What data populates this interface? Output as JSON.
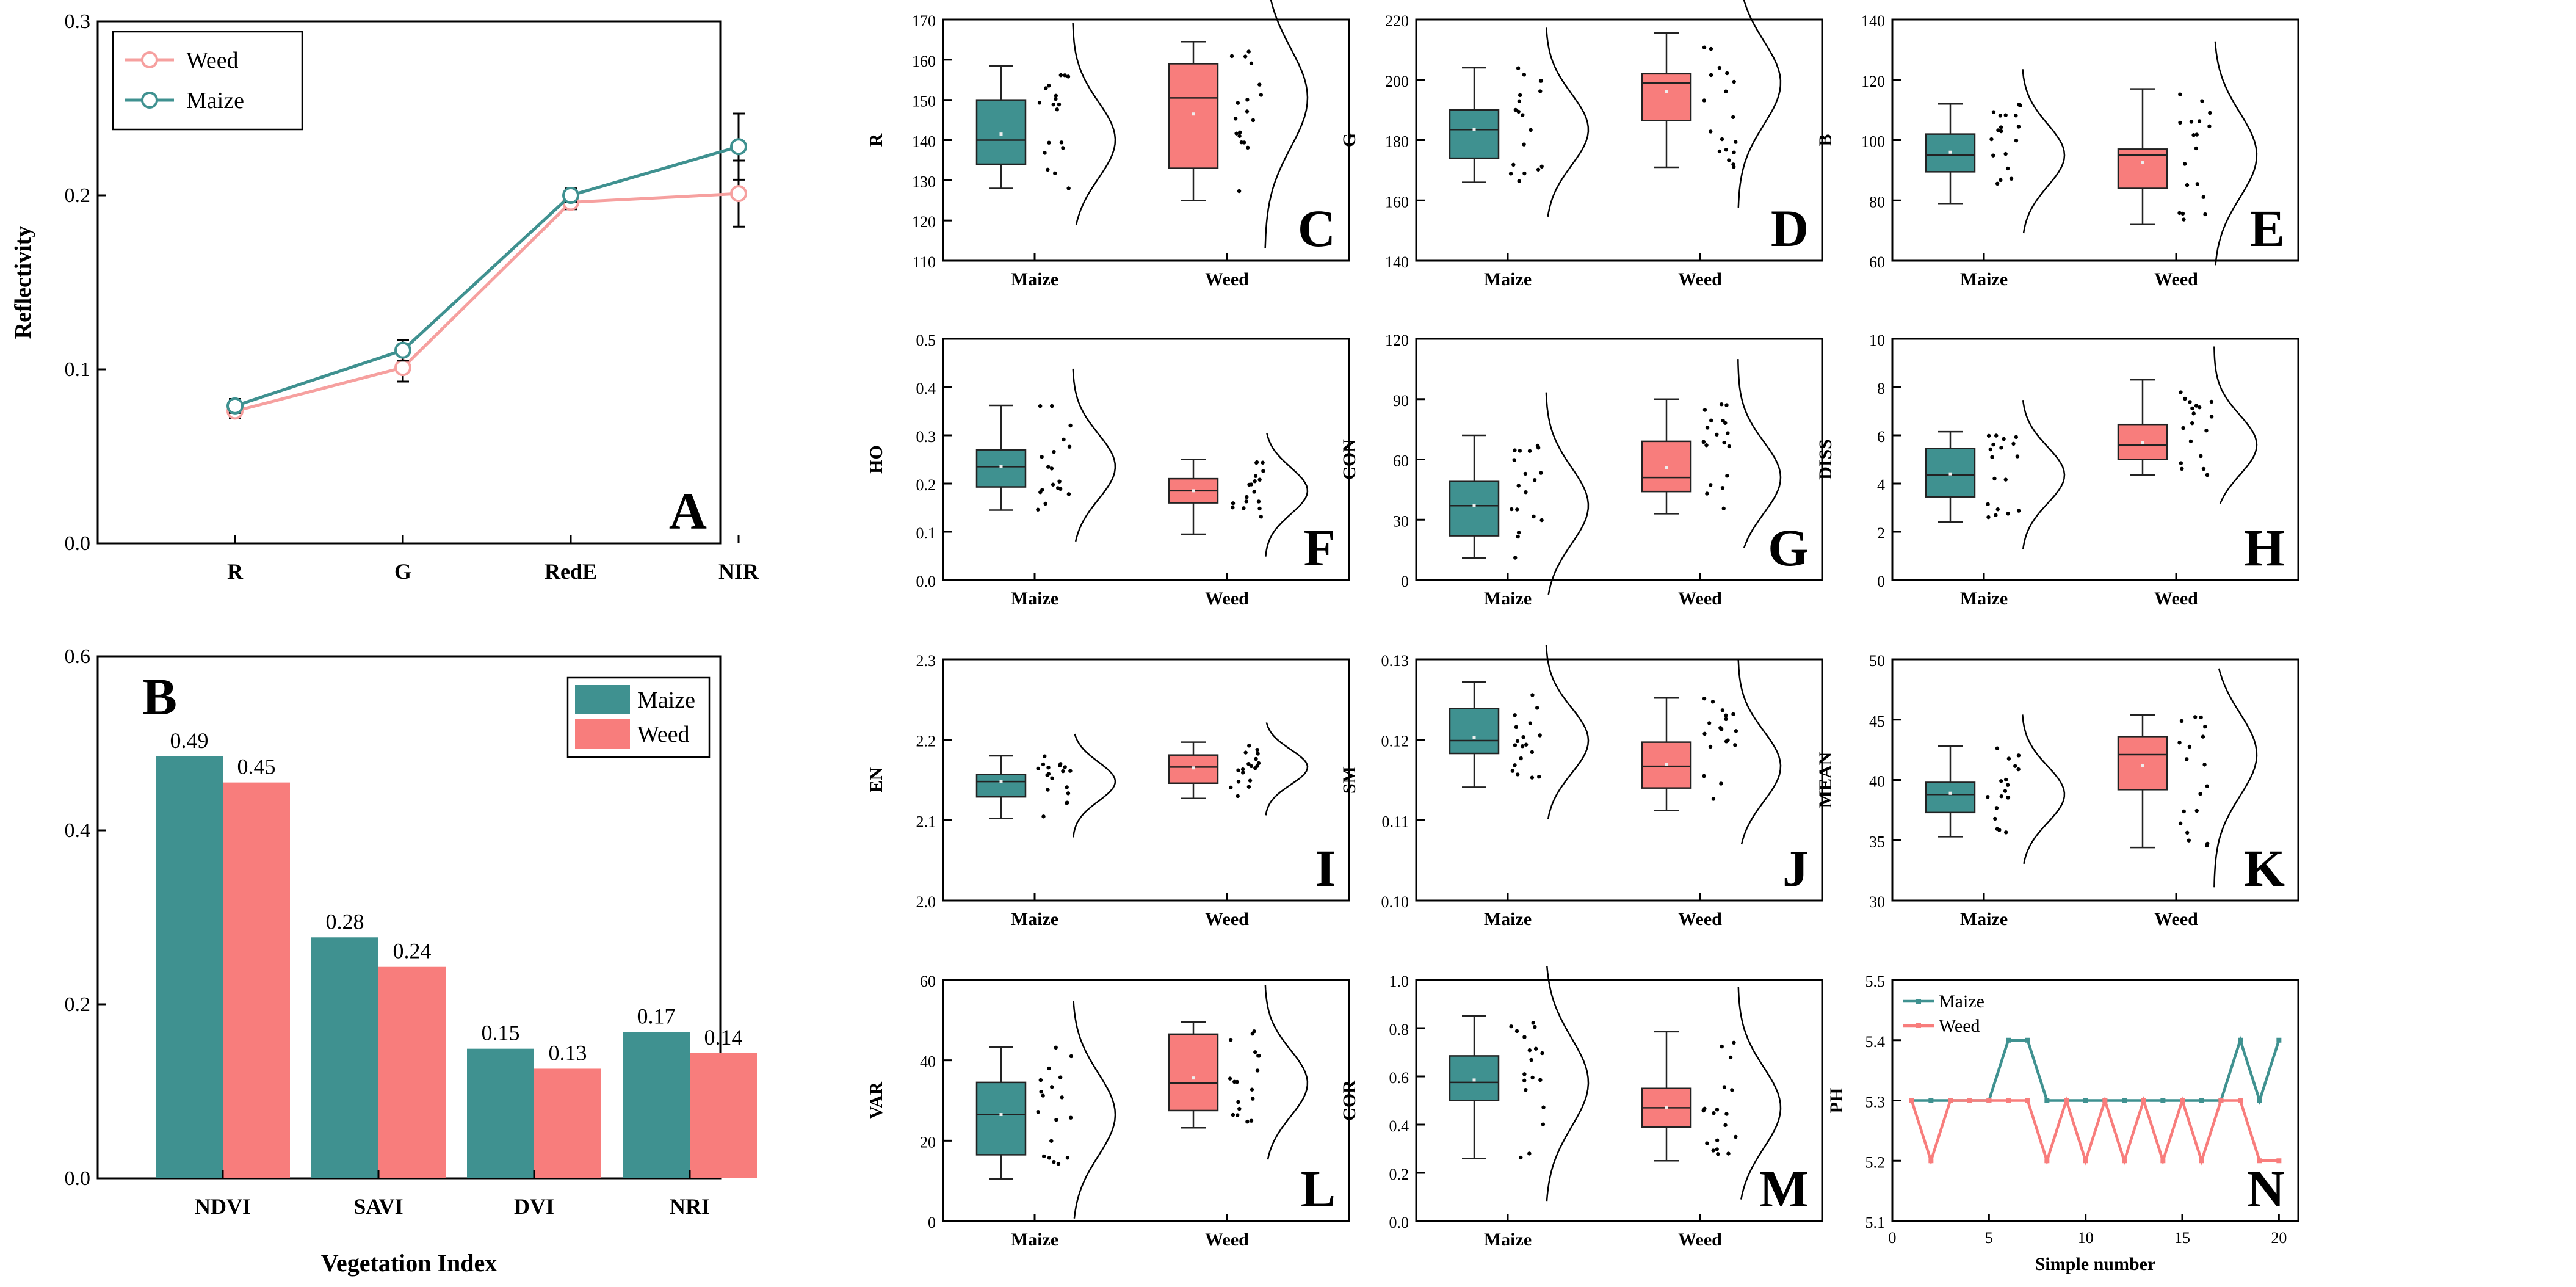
{
  "colors": {
    "maize": "#3f9190",
    "weed": "#f87d7c",
    "weed_line": "#f6a09f"
  },
  "panels": {
    "A": {
      "letter": "A",
      "type": "line",
      "categories": [
        "R",
        "G",
        "RedE",
        "NIR"
      ],
      "ylabel": "Reflectivity",
      "ylim": [
        0,
        0.3
      ],
      "yticks": [
        "0.0",
        "0.1",
        "0.2",
        "0.3"
      ],
      "legend": [
        "Weed",
        "Maize"
      ],
      "series": [
        {
          "name": "Weed",
          "values": [
            0.076,
            0.101,
            0.196,
            0.201
          ],
          "errors": [
            0.004,
            0.008,
            0.004,
            0.019
          ]
        },
        {
          "name": "Maize",
          "values": [
            0.079,
            0.111,
            0.2,
            0.228
          ],
          "errors": [
            0.004,
            0.006,
            0.004,
            0.019
          ]
        }
      ]
    },
    "B": {
      "letter": "B",
      "type": "bar",
      "categories": [
        "NDVI",
        "SAVI",
        "DVI",
        "NRI"
      ],
      "xlabel": "Vegetation Index",
      "ylim": [
        0,
        0.6
      ],
      "yticks": [
        "0.0",
        "0.2",
        "0.4",
        "0.6"
      ],
      "legend": [
        "Maize",
        "Weed"
      ],
      "series": [
        {
          "name": "Maize",
          "values": [
            0.485,
            0.277,
            0.149,
            0.168
          ],
          "labels": [
            "0.49",
            "0.28",
            "0.15",
            "0.17"
          ]
        },
        {
          "name": "Weed",
          "values": [
            0.455,
            0.243,
            0.126,
            0.144
          ],
          "labels": [
            "0.45",
            "0.24",
            "0.13",
            "0.14"
          ]
        }
      ]
    },
    "C": {
      "letter": "C",
      "ylabel": "R",
      "ylim": [
        110,
        170
      ],
      "yticks": [
        "110",
        "120",
        "130",
        "140",
        "150",
        "160",
        "170"
      ],
      "groups": [
        "Maize",
        "Weed"
      ],
      "boxes": [
        {
          "min": 128,
          "q1": 134,
          "median": 140,
          "q3": 150,
          "max": 158.5,
          "mean": 141.5
        },
        {
          "min": 125,
          "q1": 133,
          "median": 150.5,
          "q3": 159,
          "max": 164.5,
          "mean": 146.5
        }
      ]
    },
    "D": {
      "letter": "D",
      "ylabel": "G",
      "ylim": [
        140,
        220
      ],
      "yticks": [
        "140",
        "160",
        "180",
        "200",
        "220"
      ],
      "groups": [
        "Maize",
        "Weed"
      ],
      "boxes": [
        {
          "min": 166,
          "q1": 174,
          "median": 183.5,
          "q3": 190,
          "max": 204,
          "mean": 183.5
        },
        {
          "min": 171,
          "q1": 186.5,
          "median": 199,
          "q3": 202,
          "max": 215.5,
          "mean": 196
        }
      ]
    },
    "E": {
      "letter": "E",
      "ylabel": "B",
      "ylim": [
        60,
        140
      ],
      "yticks": [
        "60",
        "80",
        "100",
        "120",
        "140"
      ],
      "groups": [
        "Maize",
        "Weed"
      ],
      "boxes": [
        {
          "min": 79,
          "q1": 89.5,
          "median": 95,
          "q3": 102,
          "max": 112,
          "mean": 96
        },
        {
          "min": 72,
          "q1": 84,
          "median": 95,
          "q3": 97,
          "max": 117,
          "mean": 92.5
        }
      ]
    },
    "F": {
      "letter": "F",
      "ylabel": "HO",
      "ylim": [
        0,
        0.5
      ],
      "yticks": [
        "0.0",
        "0.1",
        "0.2",
        "0.3",
        "0.4",
        "0.5"
      ],
      "groups": [
        "Maize",
        "Weed"
      ],
      "boxes": [
        {
          "min": 0.145,
          "q1": 0.193,
          "median": 0.235,
          "q3": 0.27,
          "max": 0.362,
          "mean": 0.235
        },
        {
          "min": 0.095,
          "q1": 0.16,
          "median": 0.185,
          "q3": 0.21,
          "max": 0.25,
          "mean": 0.185
        }
      ]
    },
    "G": {
      "letter": "G",
      "ylabel": "CON",
      "ylim": [
        0,
        120
      ],
      "yticks": [
        "0",
        "30",
        "60",
        "90",
        "120"
      ],
      "groups": [
        "Maize",
        "Weed"
      ],
      "boxes": [
        {
          "min": 11,
          "q1": 22,
          "median": 37,
          "q3": 49,
          "max": 72,
          "mean": 37
        },
        {
          "min": 33,
          "q1": 44,
          "median": 51,
          "q3": 69,
          "max": 90,
          "mean": 56
        }
      ]
    },
    "H": {
      "letter": "H",
      "ylabel": "DISS",
      "ylim": [
        0,
        10
      ],
      "yticks": [
        "0",
        "2",
        "4",
        "6",
        "8",
        "10"
      ],
      "groups": [
        "Maize",
        "Weed"
      ],
      "boxes": [
        {
          "min": 2.4,
          "q1": 3.45,
          "median": 4.35,
          "q3": 5.45,
          "max": 6.15,
          "mean": 4.4
        },
        {
          "min": 4.35,
          "q1": 5.0,
          "median": 5.6,
          "q3": 6.45,
          "max": 8.3,
          "mean": 5.7
        }
      ]
    },
    "I": {
      "letter": "I",
      "ylabel": "EN",
      "ylim": [
        2.0,
        2.3
      ],
      "yticks": [
        "2.0",
        "2.1",
        "2.2",
        "2.3"
      ],
      "groups": [
        "Maize",
        "Weed"
      ],
      "boxes": [
        {
          "min": 2.102,
          "q1": 2.129,
          "median": 2.148,
          "q3": 2.157,
          "max": 2.18,
          "mean": 2.148
        },
        {
          "min": 2.127,
          "q1": 2.146,
          "median": 2.166,
          "q3": 2.181,
          "max": 2.197,
          "mean": 2.165
        }
      ]
    },
    "J": {
      "letter": "J",
      "ylabel": "SM",
      "ylim": [
        0.1,
        0.13
      ],
      "yticks": [
        "0.10",
        "0.11",
        "0.12",
        "0.13"
      ],
      "groups": [
        "Maize",
        "Weed"
      ],
      "boxes": [
        {
          "min": 0.1141,
          "q1": 0.1183,
          "median": 0.1199,
          "q3": 0.1239,
          "max": 0.1272,
          "mean": 0.1203
        },
        {
          "min": 0.1112,
          "q1": 0.114,
          "median": 0.1167,
          "q3": 0.1197,
          "max": 0.1252,
          "mean": 0.1169
        }
      ]
    },
    "K": {
      "letter": "K",
      "ylabel": "MEAN",
      "ylim": [
        30,
        50
      ],
      "yticks": [
        "30",
        "35",
        "40",
        "45",
        "50"
      ],
      "groups": [
        "Maize",
        "Weed"
      ],
      "boxes": [
        {
          "min": 35.3,
          "q1": 37.3,
          "median": 38.8,
          "q3": 39.8,
          "max": 42.8,
          "mean": 38.9
        },
        {
          "min": 34.4,
          "q1": 39.2,
          "median": 42.1,
          "q3": 43.6,
          "max": 45.4,
          "mean": 41.2
        }
      ]
    },
    "L": {
      "letter": "L",
      "ylabel": "VAR",
      "ylim": [
        0,
        60
      ],
      "yticks": [
        "0",
        "20",
        "40",
        "60"
      ],
      "groups": [
        "Maize",
        "Weed"
      ],
      "boxes": [
        {
          "min": 10.5,
          "q1": 16.5,
          "median": 26.5,
          "q3": 34.5,
          "max": 43.3,
          "mean": 26.5
        },
        {
          "min": 23.2,
          "q1": 27.5,
          "median": 34.3,
          "q3": 46.5,
          "max": 49.5,
          "mean": 35.6
        }
      ]
    },
    "M": {
      "letter": "M",
      "ylabel": "COR",
      "ylim": [
        0,
        1.0
      ],
      "yticks": [
        "0.0",
        "0.2",
        "0.4",
        "0.6",
        "0.8",
        "1.0"
      ],
      "groups": [
        "Maize",
        "Weed"
      ],
      "boxes": [
        {
          "min": 0.26,
          "q1": 0.5,
          "median": 0.575,
          "q3": 0.685,
          "max": 0.85,
          "mean": 0.585
        },
        {
          "min": 0.25,
          "q1": 0.39,
          "median": 0.47,
          "q3": 0.55,
          "max": 0.785,
          "mean": 0.47
        }
      ]
    },
    "N": {
      "letter": "N",
      "type": "line",
      "ylabel": "PH",
      "xlabel": "Simple number",
      "ylim": [
        5.1,
        5.5
      ],
      "yticks": [
        "5.1",
        "5.2",
        "5.3",
        "5.4",
        "5.5"
      ],
      "xlim": [
        0,
        21
      ],
      "xticks": [
        "0",
        "5",
        "10",
        "15",
        "20"
      ],
      "legend": [
        "Maize",
        "Weed"
      ],
      "x": [
        1,
        2,
        3,
        4,
        5,
        6,
        7,
        8,
        9,
        10,
        11,
        12,
        13,
        14,
        15,
        16,
        17,
        18,
        19,
        20
      ],
      "series": [
        {
          "name": "Maize",
          "values": [
            5.3,
            5.3,
            5.3,
            5.3,
            5.3,
            5.4,
            5.4,
            5.3,
            5.3,
            5.3,
            5.3,
            5.3,
            5.3,
            5.3,
            5.3,
            5.3,
            5.3,
            5.4,
            5.3,
            5.4
          ]
        },
        {
          "name": "Weed",
          "values": [
            5.3,
            5.2,
            5.3,
            5.3,
            5.3,
            5.3,
            5.3,
            5.2,
            5.3,
            5.2,
            5.3,
            5.2,
            5.3,
            5.2,
            5.3,
            5.2,
            5.3,
            5.3,
            5.2,
            5.2
          ]
        }
      ]
    }
  },
  "chart_data": [
    {
      "type": "line",
      "panel": "A",
      "categories": [
        "R",
        "G",
        "RedE",
        "NIR"
      ],
      "ylabel": "Reflectivity",
      "ylim": [
        0,
        0.3
      ],
      "series": [
        {
          "name": "Weed",
          "values": [
            0.076,
            0.101,
            0.196,
            0.201
          ]
        },
        {
          "name": "Maize",
          "values": [
            0.079,
            0.111,
            0.2,
            0.228
          ]
        }
      ]
    },
    {
      "type": "bar",
      "panel": "B",
      "categories": [
        "NDVI",
        "SAVI",
        "DVI",
        "NRI"
      ],
      "xlabel": "Vegetation Index",
      "ylim": [
        0,
        0.6
      ],
      "series": [
        {
          "name": "Maize",
          "values": [
            0.49,
            0.28,
            0.15,
            0.17
          ]
        },
        {
          "name": "Weed",
          "values": [
            0.45,
            0.24,
            0.13,
            0.14
          ]
        }
      ]
    },
    {
      "type": "box",
      "panels": [
        "C",
        "D",
        "E",
        "F",
        "G",
        "H",
        "I",
        "J",
        "K",
        "L",
        "M"
      ],
      "groups": [
        "Maize",
        "Weed"
      ],
      "variables": [
        "R",
        "G",
        "B",
        "HO",
        "CON",
        "DISS",
        "EN",
        "SM",
        "MEAN",
        "VAR",
        "COR"
      ]
    },
    {
      "type": "line",
      "panel": "N",
      "xlabel": "Simple number",
      "ylabel": "PH",
      "ylim": [
        5.1,
        5.5
      ],
      "x": [
        1,
        2,
        3,
        4,
        5,
        6,
        7,
        8,
        9,
        10,
        11,
        12,
        13,
        14,
        15,
        16,
        17,
        18,
        19,
        20
      ],
      "series": [
        {
          "name": "Maize",
          "values": [
            5.3,
            5.3,
            5.3,
            5.3,
            5.3,
            5.4,
            5.4,
            5.3,
            5.3,
            5.3,
            5.3,
            5.3,
            5.3,
            5.3,
            5.3,
            5.3,
            5.3,
            5.4,
            5.3,
            5.4
          ]
        },
        {
          "name": "Weed",
          "values": [
            5.3,
            5.2,
            5.3,
            5.3,
            5.3,
            5.3,
            5.3,
            5.2,
            5.3,
            5.2,
            5.3,
            5.2,
            5.3,
            5.2,
            5.3,
            5.2,
            5.3,
            5.3,
            5.2,
            5.2
          ]
        }
      ]
    }
  ]
}
